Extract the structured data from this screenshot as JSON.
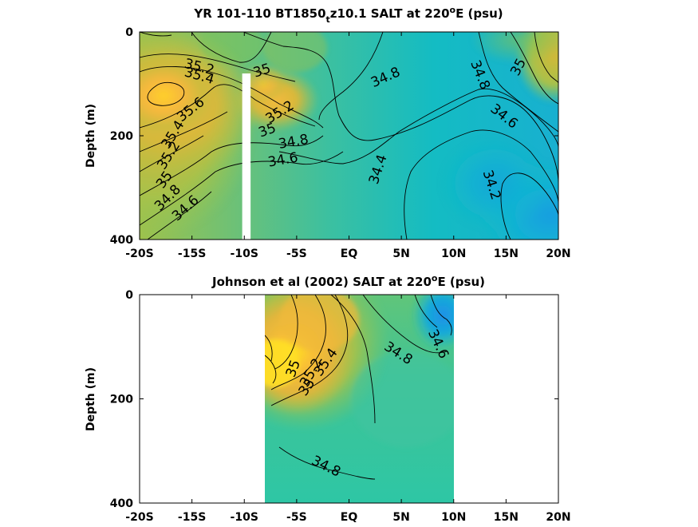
{
  "chart_data": [
    {
      "type": "heatmap",
      "title_main": "YR 101-110 BT1850",
      "title_sub": "t",
      "title_rest": "z10.1 SALT at 220",
      "title_sup": "o",
      "title_end": "E (psu)",
      "ylabel": "Depth (m)",
      "xlim": [
        -20,
        20
      ],
      "ylim": [
        400,
        0
      ],
      "xticks": [
        -20,
        -15,
        -10,
        -5,
        0,
        5,
        10,
        15,
        20
      ],
      "xtick_labels": [
        "-20S",
        "-15S",
        "-10S",
        "-5S",
        "EQ",
        "5N",
        "10N",
        "15N",
        "20N"
      ],
      "yticks": [
        0,
        200,
        400
      ],
      "ytick_labels": [
        "0",
        "200",
        "400"
      ],
      "data_extent_x": [
        -20,
        20
      ],
      "gap": {
        "x": [
          -10.2,
          -9.4
        ],
        "y": [
          80,
          400
        ]
      },
      "contour_labels": [
        {
          "text": "35.2",
          "x": -14.3,
          "y": 68,
          "angle": 14
        },
        {
          "text": "35.4",
          "x": -14.3,
          "y": 85,
          "angle": 16
        },
        {
          "text": "35",
          "x": -8.3,
          "y": 75,
          "angle": -18
        },
        {
          "text": "34.8",
          "x": 3.5,
          "y": 88,
          "angle": -24
        },
        {
          "text": "34.8",
          "x": 12.5,
          "y": 83,
          "angle": 68
        },
        {
          "text": "35",
          "x": 16.2,
          "y": 68,
          "angle": -62
        },
        {
          "text": "35.6",
          "x": -15.1,
          "y": 150,
          "angle": -38
        },
        {
          "text": "35.2",
          "x": -6.6,
          "y": 155,
          "angle": -32
        },
        {
          "text": "34.6",
          "x": 14.8,
          "y": 163,
          "angle": 38
        },
        {
          "text": "35.4",
          "x": -16.8,
          "y": 198,
          "angle": -58
        },
        {
          "text": "35",
          "x": -7.8,
          "y": 190,
          "angle": -20
        },
        {
          "text": "34.8",
          "x": -5.3,
          "y": 212,
          "angle": -10
        },
        {
          "text": "35.2",
          "x": -17.2,
          "y": 238,
          "angle": -58
        },
        {
          "text": "34.6",
          "x": -6.3,
          "y": 247,
          "angle": -10
        },
        {
          "text": "34.4",
          "x": 2.8,
          "y": 265,
          "angle": -72
        },
        {
          "text": "34.2",
          "x": 13.6,
          "y": 295,
          "angle": 72
        },
        {
          "text": "35",
          "x": -17.6,
          "y": 285,
          "angle": -55
        },
        {
          "text": "34.8",
          "x": -17.3,
          "y": 320,
          "angle": -45
        },
        {
          "text": "34.6",
          "x": -15.6,
          "y": 340,
          "angle": -42
        }
      ]
    },
    {
      "type": "heatmap",
      "title_main": "Johnson et al (2002) SALT at 220",
      "title_sup": "o",
      "title_end": "E (psu)",
      "ylabel": "Depth (m)",
      "xlim": [
        -20,
        20
      ],
      "ylim": [
        400,
        0
      ],
      "xticks": [
        -20,
        -15,
        -10,
        -5,
        0,
        5,
        10,
        15,
        20
      ],
      "xtick_labels": [
        "-20S",
        "-15S",
        "-10S",
        "-5S",
        "EQ",
        "5N",
        "10N",
        "15N",
        "20N"
      ],
      "yticks": [
        0,
        200,
        400
      ],
      "ytick_labels": [
        "0",
        "200",
        "400"
      ],
      "data_extent_x": [
        -8,
        10
      ],
      "contour_labels": [
        {
          "text": "35.4",
          "x": -2.2,
          "y": 130,
          "angle": -55
        },
        {
          "text": "35",
          "x": -5.3,
          "y": 142,
          "angle": -70
        },
        {
          "text": "35.2",
          "x": -3.6,
          "y": 150,
          "angle": -60
        },
        {
          "text": "35",
          "x": -4.0,
          "y": 178,
          "angle": -55
        },
        {
          "text": "34.8",
          "x": 4.7,
          "y": 113,
          "angle": 32
        },
        {
          "text": "34.6",
          "x": 8.5,
          "y": 95,
          "angle": 65
        },
        {
          "text": "34.8",
          "x": -2.2,
          "y": 330,
          "angle": 26
        }
      ]
    }
  ]
}
